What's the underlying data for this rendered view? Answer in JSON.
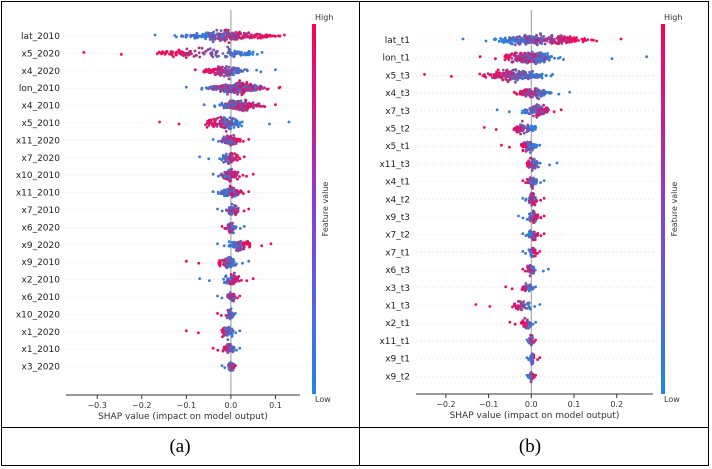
{
  "colors": {
    "low": "#1e88e5",
    "high": "#ff0052",
    "axis": "#333333",
    "zero": "#999999"
  },
  "chart_data": [
    {
      "type": "scatter",
      "subtype": "shap-beeswarm",
      "caption": "(a)",
      "xlabel": "SHAP value (impact on model output)",
      "xlim": [
        -0.37,
        0.155
      ],
      "xticks": [
        -0.3,
        -0.2,
        -0.1,
        0.0,
        0.1
      ],
      "xtick_labels": [
        "−0.3",
        "−0.2",
        "−0.1",
        "0.0",
        "0.1"
      ],
      "colorbar": {
        "label": "Feature value",
        "high": "High",
        "low": "Low"
      },
      "features": [
        {
          "name": "lat_2010",
          "min": -0.17,
          "max": 0.12,
          "lowAt": -0.08,
          "highAt": 0.06,
          "spread": 0.04
        },
        {
          "name": "x5_2020",
          "min": -0.33,
          "max": 0.07,
          "lowAt": 0.05,
          "highAt": -0.15,
          "spread": 0.02
        },
        {
          "name": "x4_2020",
          "min": -0.08,
          "max": 0.1,
          "lowAt": 0.03,
          "highAt": -0.05,
          "spread": 0.02
        },
        {
          "name": "lon_2010",
          "min": -0.1,
          "max": 0.11,
          "lowAt": 0.0,
          "highAt": 0.03,
          "spread": 0.05
        },
        {
          "name": "x4_2010",
          "min": -0.06,
          "max": 0.1,
          "lowAt": 0.0,
          "highAt": 0.04,
          "spread": 0.03
        },
        {
          "name": "x5_2010",
          "min": -0.16,
          "max": 0.13,
          "lowAt": 0.01,
          "highAt": -0.04,
          "spread": 0.02
        },
        {
          "name": "x11_2020",
          "min": -0.04,
          "max": 0.04,
          "lowAt": -0.01,
          "highAt": 0.01,
          "spread": 0.015
        },
        {
          "name": "x7_2020",
          "min": -0.07,
          "max": 0.03,
          "lowAt": -0.015,
          "highAt": 0.01,
          "spread": 0.01
        },
        {
          "name": "x10_2010",
          "min": -0.04,
          "max": 0.05,
          "lowAt": -0.01,
          "highAt": 0.01,
          "spread": 0.015
        },
        {
          "name": "x11_2010",
          "min": -0.04,
          "max": 0.04,
          "lowAt": -0.01,
          "highAt": 0.01,
          "spread": 0.015
        },
        {
          "name": "x7_2010",
          "min": -0.03,
          "max": 0.04,
          "lowAt": 0.0,
          "highAt": 0.01,
          "spread": 0.01
        },
        {
          "name": "x6_2020",
          "min": -0.02,
          "max": 0.03,
          "lowAt": 0.005,
          "highAt": -0.005,
          "spread": 0.008
        },
        {
          "name": "x9_2020",
          "min": -0.03,
          "max": 0.09,
          "lowAt": 0.0,
          "highAt": 0.04,
          "spread": 0.01
        },
        {
          "name": "x9_2010",
          "min": -0.1,
          "max": 0.04,
          "lowAt": 0.005,
          "highAt": -0.02,
          "spread": 0.01
        },
        {
          "name": "x2_2010",
          "min": -0.07,
          "max": 0.05,
          "lowAt": -0.005,
          "highAt": 0.01,
          "spread": 0.01
        },
        {
          "name": "x6_2010",
          "min": -0.03,
          "max": 0.02,
          "lowAt": 0.0,
          "highAt": 0.005,
          "spread": 0.008
        },
        {
          "name": "x10_2020",
          "min": -0.03,
          "max": 0.01,
          "lowAt": 0.0,
          "highAt": -0.005,
          "spread": 0.006
        },
        {
          "name": "x1_2020",
          "min": -0.1,
          "max": 0.02,
          "lowAt": 0.0,
          "highAt": -0.02,
          "spread": 0.008
        },
        {
          "name": "x1_2010",
          "min": -0.04,
          "max": 0.02,
          "lowAt": 0.0,
          "highAt": -0.01,
          "spread": 0.008
        },
        {
          "name": "x3_2020",
          "min": -0.02,
          "max": 0.01,
          "lowAt": 0.0,
          "highAt": 0.0,
          "spread": 0.005
        }
      ]
    },
    {
      "type": "scatter",
      "subtype": "shap-beeswarm",
      "caption": "(b)",
      "xlabel": "SHAP value (impact on model output)",
      "xlim": [
        -0.27,
        0.285
      ],
      "xticks": [
        -0.2,
        -0.1,
        0.0,
        0.1,
        0.2
      ],
      "xtick_labels": [
        "−0.2",
        "−0.1",
        "0.0",
        "0.1",
        "0.2"
      ],
      "colorbar": {
        "label": "Feature value",
        "high": "High",
        "low": "Low"
      },
      "features": [
        {
          "name": "lat_t1",
          "min": -0.16,
          "max": 0.21,
          "lowAt": -0.06,
          "highAt": 0.1,
          "spread": 0.04
        },
        {
          "name": "lon_t1",
          "min": -0.12,
          "max": 0.27,
          "lowAt": 0.03,
          "highAt": -0.03,
          "spread": 0.04
        },
        {
          "name": "x5_t3",
          "min": -0.25,
          "max": 0.05,
          "lowAt": 0.02,
          "highAt": -0.1,
          "spread": 0.03
        },
        {
          "name": "x4_t3",
          "min": -0.04,
          "max": 0.09,
          "lowAt": 0.03,
          "highAt": -0.02,
          "spread": 0.02
        },
        {
          "name": "x7_t3",
          "min": -0.08,
          "max": 0.07,
          "lowAt": 0.0,
          "highAt": 0.03,
          "spread": 0.02
        },
        {
          "name": "x5_t2",
          "min": -0.11,
          "max": 0.01,
          "lowAt": 0.005,
          "highAt": -0.04,
          "spread": 0.01
        },
        {
          "name": "x5_t1",
          "min": -0.07,
          "max": 0.02,
          "lowAt": 0.005,
          "highAt": -0.02,
          "spread": 0.01
        },
        {
          "name": "x11_t3",
          "min": -0.01,
          "max": 0.06,
          "lowAt": 0.01,
          "highAt": -0.005,
          "spread": 0.01
        },
        {
          "name": "x4_t1",
          "min": -0.02,
          "max": 0.03,
          "lowAt": 0.005,
          "highAt": 0.0,
          "spread": 0.008
        },
        {
          "name": "x4_t2",
          "min": -0.02,
          "max": 0.03,
          "lowAt": 0.0,
          "highAt": 0.005,
          "spread": 0.008
        },
        {
          "name": "x9_t3",
          "min": -0.03,
          "max": 0.03,
          "lowAt": 0.0,
          "highAt": 0.01,
          "spread": 0.008
        },
        {
          "name": "x7_t2",
          "min": -0.02,
          "max": 0.03,
          "lowAt": 0.0,
          "highAt": 0.01,
          "spread": 0.008
        },
        {
          "name": "x7_t1",
          "min": -0.02,
          "max": 0.02,
          "lowAt": 0.0,
          "highAt": 0.005,
          "spread": 0.006
        },
        {
          "name": "x6_t3",
          "min": -0.02,
          "max": 0.04,
          "lowAt": 0.005,
          "highAt": -0.005,
          "spread": 0.006
        },
        {
          "name": "x3_t3",
          "min": -0.06,
          "max": 0.01,
          "lowAt": 0.0,
          "highAt": -0.02,
          "spread": 0.006
        },
        {
          "name": "x1_t3",
          "min": -0.13,
          "max": 0.02,
          "lowAt": 0.0,
          "highAt": -0.04,
          "spread": 0.006
        },
        {
          "name": "x2_t1",
          "min": -0.05,
          "max": 0.01,
          "lowAt": 0.0,
          "highAt": -0.02,
          "spread": 0.005
        },
        {
          "name": "x11_t1",
          "min": -0.01,
          "max": 0.01,
          "lowAt": 0.0,
          "highAt": 0.0,
          "spread": 0.004
        },
        {
          "name": "x9_t1",
          "min": -0.01,
          "max": 0.02,
          "lowAt": 0.0,
          "highAt": 0.005,
          "spread": 0.004
        },
        {
          "name": "x9_t2",
          "min": -0.01,
          "max": 0.01,
          "lowAt": 0.0,
          "highAt": 0.0,
          "spread": 0.004
        }
      ]
    }
  ]
}
